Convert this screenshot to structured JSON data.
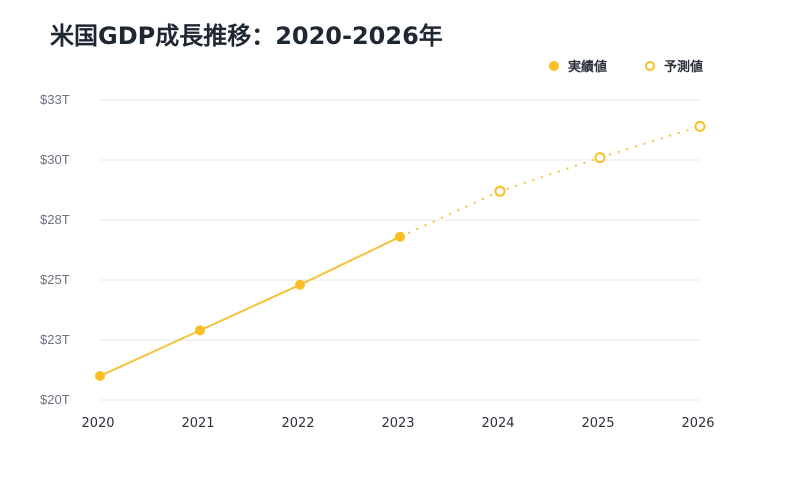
{
  "title": "米国GDP成長推移：2020-2026年",
  "legend": [
    {
      "label": "実績値",
      "style": "filled"
    },
    {
      "label": "予測値",
      "style": "hollow"
    }
  ],
  "colors": {
    "series": "#fbbf24",
    "line": "#f3c33a",
    "grid": "#e5e7eb",
    "title": "#1f2733",
    "ytick": "#6b7280",
    "xtick": "#2a313b"
  },
  "chart_data": {
    "type": "line",
    "title": "米国GDP成長推移：2020-2026年",
    "xlabel": "",
    "ylabel": "",
    "categories": [
      "2020",
      "2021",
      "2022",
      "2023",
      "2024",
      "2025",
      "2026"
    ],
    "series": [
      {
        "name": "実績値",
        "style": "solid, filled markers",
        "x": [
          "2020",
          "2021",
          "2022",
          "2023"
        ],
        "values": [
          21.0,
          22.9,
          24.8,
          26.8
        ]
      },
      {
        "name": "予測値",
        "style": "dotted, hollow markers",
        "x": [
          "2023",
          "2024",
          "2025",
          "2026"
        ],
        "values": [
          26.8,
          28.7,
          30.1,
          31.4
        ]
      }
    ],
    "yticks": [
      20,
      22.5,
      25,
      27.5,
      30,
      32.5
    ],
    "ytick_labels": [
      "$20T",
      "$23T",
      "$25T",
      "$28T",
      "$30T",
      "$33T"
    ],
    "ylim": [
      20,
      32.5
    ],
    "grid": true,
    "legend_position": "top-right"
  }
}
